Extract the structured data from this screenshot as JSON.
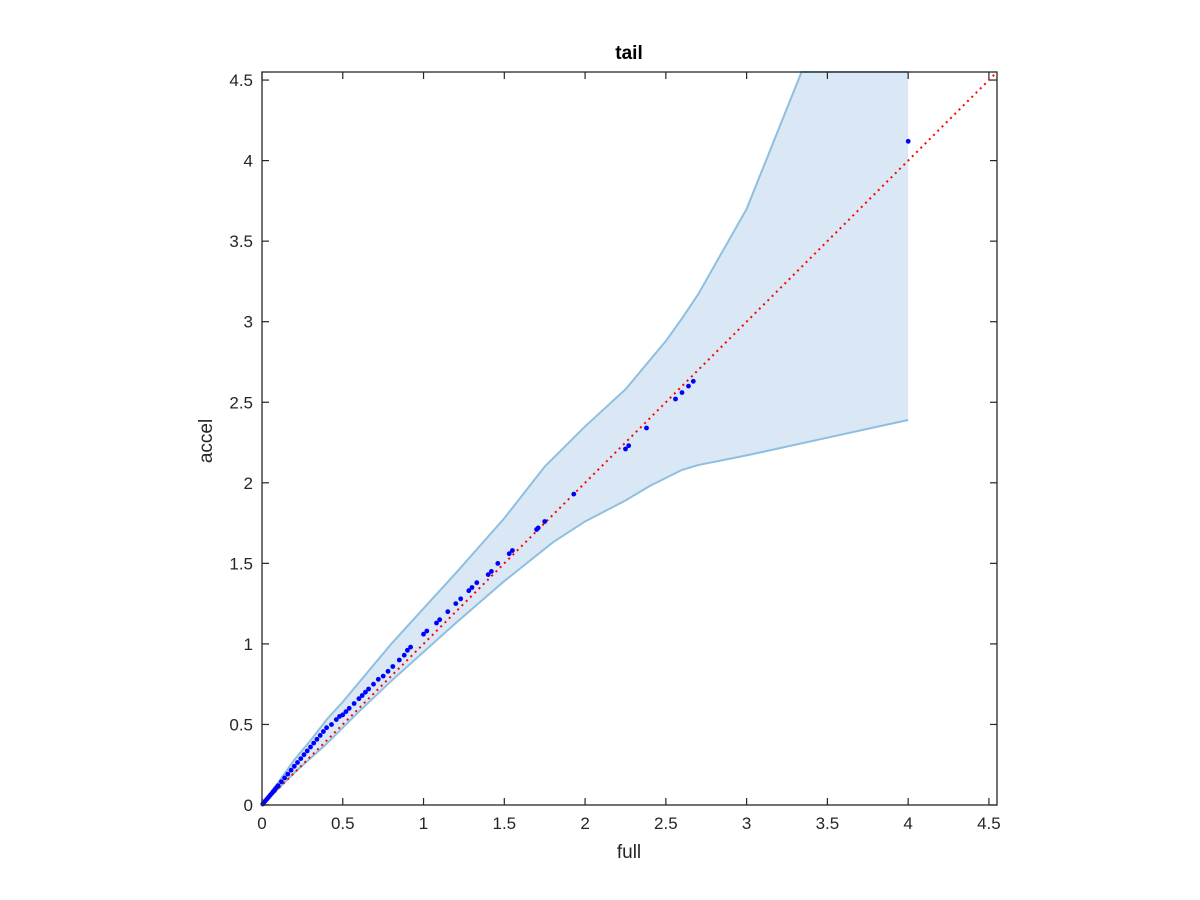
{
  "chart_data": {
    "type": "scatter",
    "title": "tail",
    "xlabel": "full",
    "ylabel": "accel",
    "xlim": [
      0,
      4.55
    ],
    "ylim": [
      0,
      4.55
    ],
    "xticks": [
      "0",
      "0.5",
      "1",
      "1.5",
      "2",
      "2.5",
      "3",
      "3.5",
      "4",
      "4.5"
    ],
    "yticks": [
      "0",
      "0.5",
      "1",
      "1.5",
      "2",
      "2.5",
      "3",
      "3.5",
      "4",
      "4.5"
    ],
    "grid": false,
    "colors": {
      "points": "#0000ff",
      "reference_line": "#ff0000",
      "band_fill": "#d9e8f4",
      "band_edge": "#8fbfe0",
      "axes": "#262626"
    },
    "points": {
      "x": [
        0.005,
        0.01,
        0.02,
        0.03,
        0.04,
        0.05,
        0.06,
        0.07,
        0.08,
        0.09,
        0.1,
        0.12,
        0.14,
        0.16,
        0.18,
        0.2,
        0.22,
        0.24,
        0.26,
        0.28,
        0.3,
        0.32,
        0.34,
        0.36,
        0.38,
        0.4,
        0.43,
        0.46,
        0.48,
        0.5,
        0.52,
        0.54,
        0.57,
        0.6,
        0.62,
        0.64,
        0.66,
        0.69,
        0.72,
        0.75,
        0.78,
        0.81,
        0.85,
        0.88,
        0.9,
        0.92,
        1.0,
        1.02,
        1.08,
        1.1,
        1.15,
        1.2,
        1.23,
        1.28,
        1.3,
        1.33,
        1.4,
        1.42,
        1.46,
        1.53,
        1.55,
        1.7,
        1.71,
        1.75,
        1.93,
        2.25,
        2.27,
        2.38,
        2.56,
        2.6,
        2.64,
        2.67,
        4.0
      ],
      "y": [
        0.006,
        0.012,
        0.024,
        0.036,
        0.048,
        0.06,
        0.072,
        0.084,
        0.096,
        0.108,
        0.12,
        0.144,
        0.168,
        0.192,
        0.216,
        0.24,
        0.264,
        0.288,
        0.312,
        0.336,
        0.36,
        0.384,
        0.408,
        0.432,
        0.456,
        0.48,
        0.5,
        0.53,
        0.55,
        0.56,
        0.58,
        0.6,
        0.63,
        0.66,
        0.68,
        0.7,
        0.72,
        0.75,
        0.78,
        0.8,
        0.83,
        0.86,
        0.9,
        0.93,
        0.96,
        0.98,
        1.06,
        1.08,
        1.13,
        1.15,
        1.2,
        1.25,
        1.28,
        1.33,
        1.35,
        1.38,
        1.43,
        1.45,
        1.5,
        1.56,
        1.58,
        1.71,
        1.72,
        1.76,
        1.93,
        2.21,
        2.23,
        2.34,
        2.52,
        2.56,
        2.6,
        2.63,
        4.12
      ]
    },
    "reference_line": {
      "x": [
        0,
        4.55
      ],
      "y": [
        0,
        4.55
      ]
    },
    "band": {
      "upper": {
        "x": [
          0,
          0.1,
          0.2,
          0.3,
          0.4,
          0.5,
          0.6,
          0.7,
          0.8,
          1.0,
          1.2,
          1.5,
          1.75,
          2.0,
          2.25,
          2.5,
          2.6,
          2.7,
          3.0,
          3.34,
          4.0
        ],
        "y": [
          0,
          0.14,
          0.28,
          0.4,
          0.53,
          0.64,
          0.76,
          0.88,
          1.0,
          1.22,
          1.44,
          1.78,
          2.1,
          2.35,
          2.58,
          2.88,
          3.02,
          3.17,
          3.7,
          4.55,
          4.55
        ]
      },
      "lower": {
        "x": [
          0,
          0.2,
          0.4,
          0.6,
          0.8,
          1.0,
          1.2,
          1.5,
          1.8,
          2.0,
          2.25,
          2.4,
          2.6,
          2.7,
          3.0,
          3.5,
          4.0
        ],
        "y": [
          0,
          0.2,
          0.38,
          0.58,
          0.77,
          0.95,
          1.13,
          1.39,
          1.63,
          1.76,
          1.89,
          1.98,
          2.08,
          2.11,
          2.17,
          2.28,
          2.39
        ]
      }
    }
  }
}
